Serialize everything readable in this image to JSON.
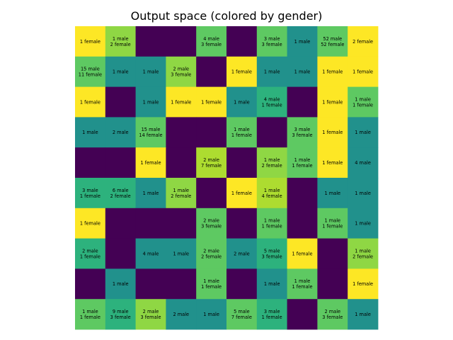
{
  "chart_data": {
    "type": "heatmap",
    "title": "Output space (colored by gender)",
    "rows": 10,
    "cols": 10,
    "colors": {
      "empty": "#440154",
      "male": "#21918c",
      "female": "#fde725",
      "mostly_male": "#2db27d",
      "balanced": "#5ec962",
      "mostly_female": "#addc30",
      "slight_female": "#8fd744"
    },
    "cells": [
      [
        {
          "labels": [
            "1 female"
          ],
          "color": "female"
        },
        {
          "labels": [
            "1 male",
            "2 female"
          ],
          "color": "slight_female"
        },
        {
          "labels": [],
          "color": "empty"
        },
        {
          "labels": [],
          "color": "empty"
        },
        {
          "labels": [
            "4 male",
            "3 female"
          ],
          "color": "balanced"
        },
        {
          "labels": [],
          "color": "empty"
        },
        {
          "labels": [
            "3 male",
            "3 female"
          ],
          "color": "balanced"
        },
        {
          "labels": [
            "1 male"
          ],
          "color": "male"
        },
        {
          "labels": [
            "52 male",
            "52 female"
          ],
          "color": "balanced"
        },
        {
          "labels": [
            "2 female"
          ],
          "color": "female"
        }
      ],
      [
        {
          "labels": [
            "15 male",
            "11 female"
          ],
          "color": "balanced"
        },
        {
          "labels": [
            "1 male"
          ],
          "color": "male"
        },
        {
          "labels": [
            "1 male"
          ],
          "color": "male"
        },
        {
          "labels": [
            "2 male",
            "3 female"
          ],
          "color": "slight_female"
        },
        {
          "labels": [],
          "color": "empty"
        },
        {
          "labels": [
            "1 female"
          ],
          "color": "female"
        },
        {
          "labels": [
            "1 male"
          ],
          "color": "male"
        },
        {
          "labels": [
            "1 male"
          ],
          "color": "male"
        },
        {
          "labels": [
            "1 female"
          ],
          "color": "female"
        },
        {
          "labels": [
            "1 female"
          ],
          "color": "female"
        }
      ],
      [
        {
          "labels": [
            "1 female"
          ],
          "color": "female"
        },
        {
          "labels": [],
          "color": "empty"
        },
        {
          "labels": [
            "1 male"
          ],
          "color": "male"
        },
        {
          "labels": [
            "1 female"
          ],
          "color": "female"
        },
        {
          "labels": [
            "1 female"
          ],
          "color": "female"
        },
        {
          "labels": [
            "1 male"
          ],
          "color": "male"
        },
        {
          "labels": [
            "4 male",
            "1 female"
          ],
          "color": "mostly_male"
        },
        {
          "labels": [],
          "color": "empty"
        },
        {
          "labels": [
            "1 female"
          ],
          "color": "female"
        },
        {
          "labels": [
            "1 male",
            "1 female"
          ],
          "color": "balanced"
        }
      ],
      [
        {
          "labels": [
            "1 male"
          ],
          "color": "male"
        },
        {
          "labels": [
            "2 male"
          ],
          "color": "male"
        },
        {
          "labels": [
            "15 male",
            "14 female"
          ],
          "color": "balanced"
        },
        {
          "labels": [],
          "color": "empty"
        },
        {
          "labels": [],
          "color": "empty"
        },
        {
          "labels": [
            "1 male",
            "1 female"
          ],
          "color": "balanced"
        },
        {
          "labels": [],
          "color": "empty"
        },
        {
          "labels": [
            "3 male",
            "3 female"
          ],
          "color": "balanced"
        },
        {
          "labels": [
            "1 female"
          ],
          "color": "female"
        },
        {
          "labels": [
            "1 male"
          ],
          "color": "male"
        }
      ],
      [
        {
          "labels": [],
          "color": "empty"
        },
        {
          "labels": [],
          "color": "empty"
        },
        {
          "labels": [
            "1 female"
          ],
          "color": "female"
        },
        {
          "labels": [],
          "color": "empty"
        },
        {
          "labels": [
            "2 male",
            "7 female"
          ],
          "color": "mostly_female"
        },
        {
          "labels": [],
          "color": "empty"
        },
        {
          "labels": [
            "1 male",
            "2 female"
          ],
          "color": "slight_female"
        },
        {
          "labels": [
            "1 male",
            "1 female"
          ],
          "color": "balanced"
        },
        {
          "labels": [
            "1 female"
          ],
          "color": "female"
        },
        {
          "labels": [
            "4 male"
          ],
          "color": "male"
        }
      ],
      [
        {
          "labels": [
            "3 male",
            "1 female"
          ],
          "color": "mostly_male"
        },
        {
          "labels": [
            "6 male",
            "2 female"
          ],
          "color": "mostly_male"
        },
        {
          "labels": [
            "1 male"
          ],
          "color": "male"
        },
        {
          "labels": [
            "1 male",
            "2 female"
          ],
          "color": "slight_female"
        },
        {
          "labels": [],
          "color": "empty"
        },
        {
          "labels": [
            "1 female"
          ],
          "color": "female"
        },
        {
          "labels": [
            "1 male",
            "4 female"
          ],
          "color": "mostly_female"
        },
        {
          "labels": [],
          "color": "empty"
        },
        {
          "labels": [
            "1 male"
          ],
          "color": "male"
        },
        {
          "labels": [
            "1 male"
          ],
          "color": "male"
        }
      ],
      [
        {
          "labels": [
            "1 female"
          ],
          "color": "female"
        },
        {
          "labels": [],
          "color": "empty"
        },
        {
          "labels": [],
          "color": "empty"
        },
        {
          "labels": [],
          "color": "empty"
        },
        {
          "labels": [
            "2 male",
            "3 female"
          ],
          "color": "balanced"
        },
        {
          "labels": [],
          "color": "empty"
        },
        {
          "labels": [
            "1 male",
            "1 female"
          ],
          "color": "balanced"
        },
        {
          "labels": [],
          "color": "empty"
        },
        {
          "labels": [
            "1 male",
            "1 female"
          ],
          "color": "balanced"
        },
        {
          "labels": [
            "1 male"
          ],
          "color": "male"
        }
      ],
      [
        {
          "labels": [
            "2 male",
            "1 female"
          ],
          "color": "mostly_male"
        },
        {
          "labels": [],
          "color": "empty"
        },
        {
          "labels": [
            "4 male"
          ],
          "color": "male"
        },
        {
          "labels": [
            "1 male"
          ],
          "color": "male"
        },
        {
          "labels": [
            "2 male",
            "2 female"
          ],
          "color": "balanced"
        },
        {
          "labels": [
            "2 male"
          ],
          "color": "male"
        },
        {
          "labels": [
            "5 male",
            "3 female"
          ],
          "color": "mostly_male"
        },
        {
          "labels": [
            "1 female"
          ],
          "color": "female"
        },
        {
          "labels": [],
          "color": "empty"
        },
        {
          "labels": [
            "1 male",
            "2 female"
          ],
          "color": "slight_female"
        }
      ],
      [
        {
          "labels": [],
          "color": "empty"
        },
        {
          "labels": [
            "1 male"
          ],
          "color": "male"
        },
        {
          "labels": [],
          "color": "empty"
        },
        {
          "labels": [],
          "color": "empty"
        },
        {
          "labels": [
            "1 male",
            "1 female"
          ],
          "color": "balanced"
        },
        {
          "labels": [],
          "color": "empty"
        },
        {
          "labels": [
            "1 male"
          ],
          "color": "male"
        },
        {
          "labels": [
            "1 male",
            "1 female"
          ],
          "color": "balanced"
        },
        {
          "labels": [],
          "color": "empty"
        },
        {
          "labels": [
            "1 female"
          ],
          "color": "female"
        }
      ],
      [
        {
          "labels": [
            "1 male",
            "1 female"
          ],
          "color": "balanced"
        },
        {
          "labels": [
            "9 male",
            "3 female"
          ],
          "color": "mostly_male"
        },
        {
          "labels": [
            "2 male",
            "3 female"
          ],
          "color": "slight_female"
        },
        {
          "labels": [
            "2 male"
          ],
          "color": "male"
        },
        {
          "labels": [
            "1 male"
          ],
          "color": "male"
        },
        {
          "labels": [
            "5 male",
            "7 female"
          ],
          "color": "balanced"
        },
        {
          "labels": [
            "3 male",
            "1 female"
          ],
          "color": "mostly_male"
        },
        {
          "labels": [],
          "color": "empty"
        },
        {
          "labels": [
            "2 male",
            "3 female"
          ],
          "color": "balanced"
        },
        {
          "labels": [
            "1 male"
          ],
          "color": "male"
        }
      ]
    ]
  }
}
